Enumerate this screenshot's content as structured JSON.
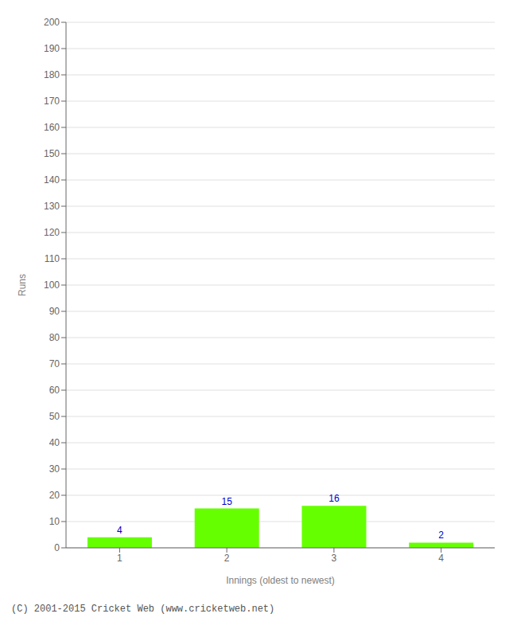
{
  "chart_data": {
    "type": "bar",
    "categories": [
      "1",
      "2",
      "3",
      "4"
    ],
    "values": [
      4,
      15,
      16,
      2
    ],
    "color": "#66ff00",
    "xlabel": "Innings (oldest to newest)",
    "ylabel": "Runs",
    "ylim": [
      0,
      200
    ],
    "yticks": [
      0,
      10,
      20,
      30,
      40,
      50,
      60,
      70,
      80,
      90,
      100,
      110,
      120,
      130,
      140,
      150,
      160,
      170,
      180,
      190,
      200
    ],
    "grid": true,
    "data_labels": true,
    "annotations": [
      "(C) 2001-2015 Cricket Web (www.cricketweb.net)"
    ]
  }
}
